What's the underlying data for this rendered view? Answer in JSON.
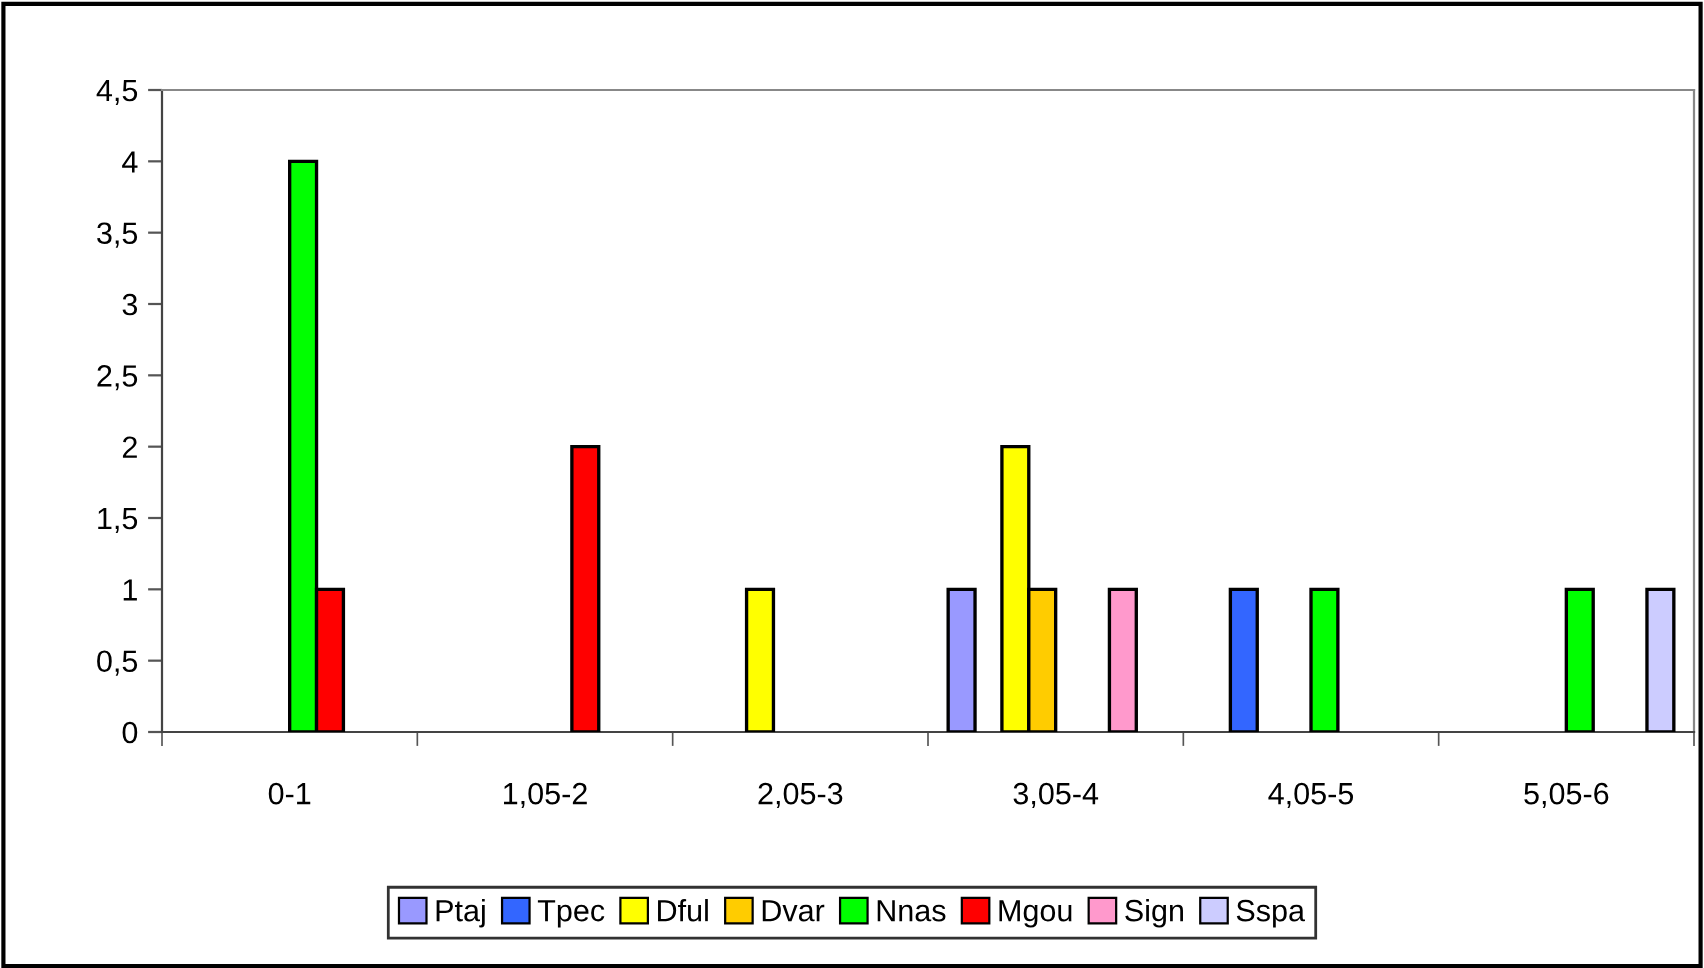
{
  "chart_data": {
    "type": "bar",
    "categories": [
      "0-1",
      "1,05-2",
      "2,05-3",
      "3,05-4",
      "4,05-5",
      "5,05-6"
    ],
    "series": [
      {
        "name": "Ptaj",
        "color": "#9999ff",
        "values": [
          null,
          null,
          null,
          1,
          null,
          null
        ]
      },
      {
        "name": "Tpec",
        "color": "#3366ff",
        "values": [
          null,
          null,
          null,
          null,
          1,
          null
        ]
      },
      {
        "name": "Dful",
        "color": "#ffff00",
        "values": [
          null,
          null,
          1,
          2,
          null,
          null
        ]
      },
      {
        "name": "Dvar",
        "color": "#ffcc00",
        "values": [
          null,
          null,
          null,
          1,
          null,
          null
        ]
      },
      {
        "name": "Nnas",
        "color": "#00ff00",
        "values": [
          4,
          null,
          null,
          null,
          1,
          1
        ]
      },
      {
        "name": "Mgou",
        "color": "#ff0000",
        "values": [
          1,
          2,
          null,
          null,
          null,
          null
        ]
      },
      {
        "name": "Sign",
        "color": "#ff99cc",
        "values": [
          null,
          null,
          null,
          1,
          null,
          null
        ]
      },
      {
        "name": "Sspa",
        "color": "#ccccff",
        "values": [
          null,
          null,
          null,
          null,
          null,
          1
        ]
      }
    ],
    "ylim": [
      0,
      4.5
    ],
    "yticks": [
      0,
      {
        "value": 0.5,
        "label": "0,5"
      },
      1,
      {
        "value": 1.5,
        "label": "1,5"
      },
      2,
      {
        "value": 2.5,
        "label": "2,5"
      },
      3,
      {
        "value": 3.5,
        "label": "3,5"
      },
      4,
      {
        "value": 4.5,
        "label": "4,5"
      }
    ],
    "grid": false,
    "legend": "bottom"
  }
}
